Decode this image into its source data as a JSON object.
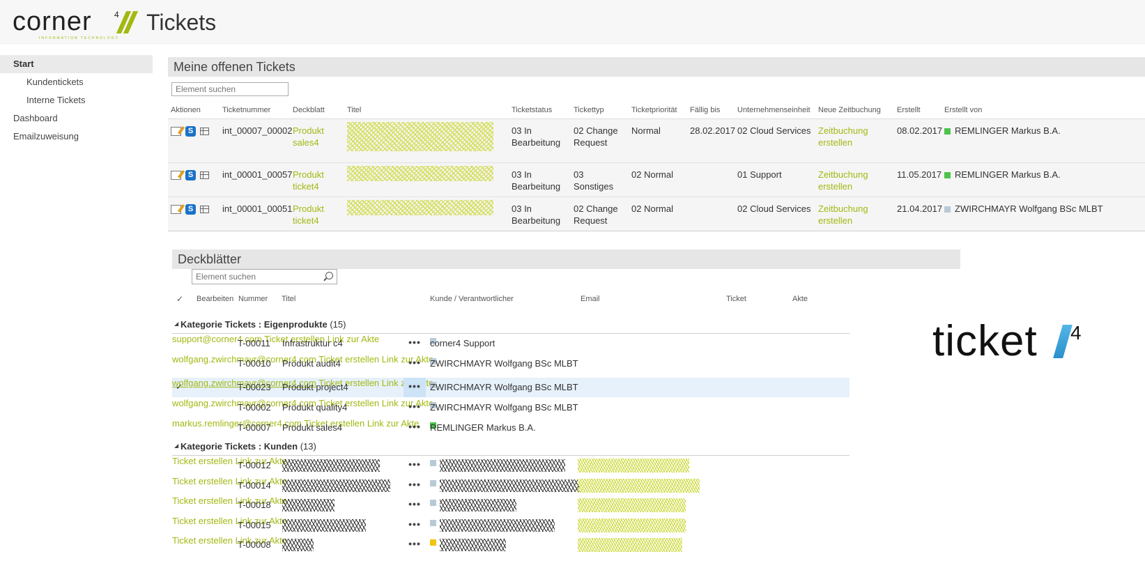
{
  "header": {
    "logo_text": "corner",
    "logo_sup": "4",
    "logo_sub": "INFORMATION TECHNOLOGY",
    "site_title": "Tickets"
  },
  "nav": {
    "items": [
      {
        "label": "Start",
        "active": true,
        "level": 0
      },
      {
        "label": "Kundentickets",
        "active": false,
        "level": 1
      },
      {
        "label": "Interne Tickets",
        "active": false,
        "level": 1
      },
      {
        "label": "Dashboard",
        "active": false,
        "level": 0
      },
      {
        "label": "Emailzuweisung",
        "active": false,
        "level": 0
      }
    ]
  },
  "open_tickets": {
    "title": "Meine offenen Tickets",
    "search_placeholder": "Element suchen",
    "columns": [
      "Aktionen",
      "Ticketnummer",
      "Deckblatt",
      "Titel",
      "Ticketstatus",
      "Tickettyp",
      "Ticketpriorität",
      "Fällig bis",
      "Unternehmenseinheit",
      "Neue Zeitbuchung",
      "Erstellt",
      "Erstellt von"
    ],
    "rows": [
      {
        "nummer": "int_00007_00002",
        "deckblatt": "Produkt sales4",
        "status": "03 In Bearbeitung",
        "typ": "02 Change Request",
        "prio": "Normal",
        "faellig": "28.02.2017",
        "einheit": "02 Cloud Services",
        "zeitbuchung": "Zeitbuchung erstellen",
        "erstellt": "08.02.2017",
        "von": "REMLINGER Markus B.A.",
        "von_color": "#4cc34c"
      },
      {
        "nummer": "int_00001_00057",
        "deckblatt": "Produkt ticket4",
        "status": "03 In Bearbeitung",
        "typ": "03 Sonstiges",
        "prio": "02 Normal",
        "faellig": "",
        "einheit": "01 Support",
        "zeitbuchung": "Zeitbuchung erstellen",
        "erstellt": "11.05.2017",
        "von": "REMLINGER Markus B.A.",
        "von_color": "#4cc34c"
      },
      {
        "nummer": "int_00001_00051",
        "deckblatt": "Produkt ticket4",
        "status": "03 In Bearbeitung",
        "typ": "02 Change Request",
        "prio": "02 Normal",
        "faellig": "",
        "einheit": "02 Cloud Services",
        "zeitbuchung": "Zeitbuchung erstellen",
        "erstellt": "21.04.2017",
        "von": "ZWIRCHMAYR Wolfgang BSc MLBT",
        "von_color": "#b8cad6"
      }
    ]
  },
  "deckblaetter": {
    "title": "Deckblätter",
    "search_placeholder": "Element suchen",
    "columns": {
      "check": "✓",
      "bearbeiten": "Bearbeiten",
      "nummer": "Nummer",
      "titel": "Titel",
      "kunde": "Kunde / Verantwortlicher",
      "email": "Email",
      "ticket": "Ticket",
      "akte": "Akte"
    },
    "groups": [
      {
        "label": "Kategorie Tickets : Eigenprodukte",
        "count": "(15)",
        "rows": [
          {
            "num": "T-00011",
            "title": "Infrastruktur c4",
            "kunde": "corner4 Support",
            "kunde_color": "#b8cad6",
            "email": "support@corner4.com",
            "ticket": "Ticket erstellen",
            "akte": "Link zur Akte",
            "selected": false
          },
          {
            "num": "T-00010",
            "title": "Produkt audit4",
            "kunde": "ZWIRCHMAYR Wolfgang BSc MLBT",
            "kunde_color": "#b8cad6",
            "email": "wolfgang.zwirchmayr@corner4.com",
            "ticket": "Ticket erstellen",
            "akte": "Link zur Akte",
            "selected": false
          },
          {
            "num": "T-00023",
            "title": "Produkt project4",
            "kunde": "ZWIRCHMAYR Wolfgang BSc MLBT",
            "kunde_color": "#b8cad6",
            "email": "wolfgang.zwirchmayr@corner4.com",
            "ticket": "Ticket erstellen",
            "akte": "Link zur Akte",
            "selected": true
          },
          {
            "num": "T-00002",
            "title": "Produkt quality4",
            "kunde": "ZWIRCHMAYR Wolfgang BSc MLBT",
            "kunde_color": "#b8cad6",
            "email": "wolfgang.zwirchmayr@corner4.com",
            "ticket": "Ticket erstellen",
            "akte": "Link zur Akte",
            "selected": false
          },
          {
            "num": "T-00007",
            "title": "Produkt sales4",
            "kunde": "REMLINGER Markus B.A.",
            "kunde_color": "#4cc34c",
            "email": "markus.remlinger@corner4.com",
            "ticket": "Ticket erstellen",
            "akte": "Link zur Akte",
            "selected": false
          }
        ]
      },
      {
        "label": "Kategorie Tickets : Kunden",
        "count": "(13)",
        "rows": [
          {
            "num": "T-00012",
            "kunde_color": "#b8cad6",
            "ticket": "Ticket erstellen",
            "akte": "Link zur Akte"
          },
          {
            "num": "T-00014",
            "kunde_color": "#b8cad6",
            "ticket": "Ticket erstellen",
            "akte": "Link zur Akte"
          },
          {
            "num": "T-00018",
            "kunde_color": "#b8cad6",
            "ticket": "Ticket erstellen",
            "akte": "Link zur Akte"
          },
          {
            "num": "T-00015",
            "kunde_color": "#b8cad6",
            "ticket": "Ticket erstellen",
            "akte": "Link zur Akte"
          },
          {
            "num": "T-00008",
            "kunde_color": "#f2c40f",
            "ticket": "Ticket erstellen",
            "akte": "Link zur Akte"
          }
        ]
      }
    ]
  },
  "brand": {
    "text": "ticket",
    "sup": "4"
  },
  "colors": {
    "accent": "#a3b812",
    "selected_row": "#e6f1fb"
  },
  "icons": [
    "edit-icon",
    "sharepoint-icon",
    "grid-view-icon",
    "search-icon",
    "checkmark-icon",
    "ellipsis-icon",
    "collapse-triangle-icon"
  ]
}
